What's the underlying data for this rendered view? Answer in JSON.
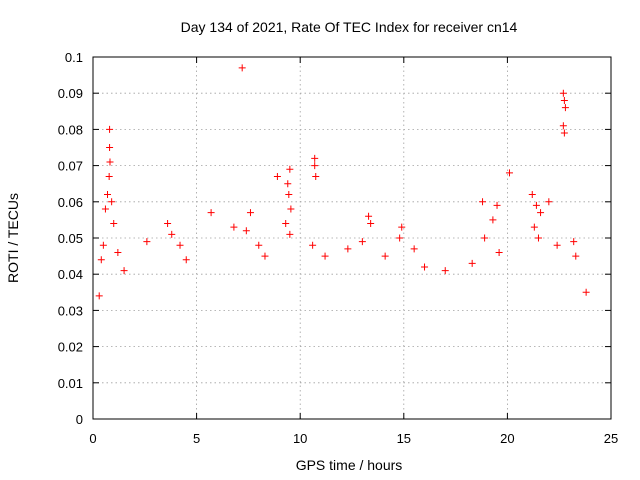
{
  "chart_data": {
    "type": "scatter",
    "title": "Day 134 of 2021, Rate Of TEC Index for receiver cn14",
    "xlabel": "GPS time / hours",
    "ylabel": "ROTI / TECUs",
    "xlim": [
      0,
      25
    ],
    "ylim": [
      0,
      0.1
    ],
    "xticks": [
      0,
      5,
      10,
      15,
      20,
      25
    ],
    "yticks": [
      0,
      0.01,
      0.02,
      0.03,
      0.04,
      0.05,
      0.06,
      0.07,
      0.08,
      0.09,
      0.1
    ],
    "xtick_labels": [
      "0",
      "5",
      "10",
      "15",
      "20",
      "25"
    ],
    "ytick_labels": [
      "0",
      "0.01",
      "0.02",
      "0.03",
      "0.04",
      "0.05",
      "0.06",
      "0.07",
      "0.08",
      "0.09",
      "0.1"
    ],
    "grid": true,
    "marker": "+",
    "color": "#ff0000",
    "series": [
      {
        "name": "ROTI",
        "points": [
          [
            0.8,
            0.08
          ],
          [
            0.8,
            0.075
          ],
          [
            0.82,
            0.071
          ],
          [
            0.78,
            0.067
          ],
          [
            0.7,
            0.062
          ],
          [
            0.9,
            0.06
          ],
          [
            0.6,
            0.058
          ],
          [
            1.0,
            0.054
          ],
          [
            0.5,
            0.048
          ],
          [
            1.2,
            0.046
          ],
          [
            0.3,
            0.034
          ],
          [
            0.4,
            0.044
          ],
          [
            1.5,
            0.041
          ],
          [
            2.6,
            0.049
          ],
          [
            3.6,
            0.054
          ],
          [
            3.8,
            0.051
          ],
          [
            4.2,
            0.048
          ],
          [
            4.5,
            0.044
          ],
          [
            5.7,
            0.057
          ],
          [
            6.8,
            0.053
          ],
          [
            7.2,
            0.097
          ],
          [
            7.6,
            0.057
          ],
          [
            7.4,
            0.052
          ],
          [
            8.0,
            0.048
          ],
          [
            8.3,
            0.045
          ],
          [
            8.9,
            0.067
          ],
          [
            9.5,
            0.069
          ],
          [
            9.4,
            0.065
          ],
          [
            9.45,
            0.062
          ],
          [
            9.55,
            0.058
          ],
          [
            9.3,
            0.054
          ],
          [
            9.5,
            0.051
          ],
          [
            10.7,
            0.072
          ],
          [
            10.7,
            0.07
          ],
          [
            10.75,
            0.067
          ],
          [
            10.6,
            0.048
          ],
          [
            11.2,
            0.045
          ],
          [
            12.3,
            0.047
          ],
          [
            13.3,
            0.056
          ],
          [
            13.4,
            0.054
          ],
          [
            13.0,
            0.049
          ],
          [
            14.1,
            0.045
          ],
          [
            14.9,
            0.053
          ],
          [
            14.8,
            0.05
          ],
          [
            15.5,
            0.047
          ],
          [
            16.0,
            0.042
          ],
          [
            17.0,
            0.041
          ],
          [
            18.3,
            0.043
          ],
          [
            18.8,
            0.06
          ],
          [
            19.5,
            0.059
          ],
          [
            19.3,
            0.055
          ],
          [
            18.9,
            0.05
          ],
          [
            19.6,
            0.046
          ],
          [
            20.1,
            0.068
          ],
          [
            21.2,
            0.062
          ],
          [
            21.4,
            0.059
          ],
          [
            21.6,
            0.057
          ],
          [
            21.3,
            0.053
          ],
          [
            21.5,
            0.05
          ],
          [
            22.0,
            0.06
          ],
          [
            22.7,
            0.09
          ],
          [
            22.75,
            0.088
          ],
          [
            22.8,
            0.086
          ],
          [
            22.7,
            0.081
          ],
          [
            22.75,
            0.079
          ],
          [
            23.2,
            0.049
          ],
          [
            23.3,
            0.045
          ],
          [
            22.4,
            0.048
          ],
          [
            23.8,
            0.035
          ]
        ]
      }
    ]
  }
}
